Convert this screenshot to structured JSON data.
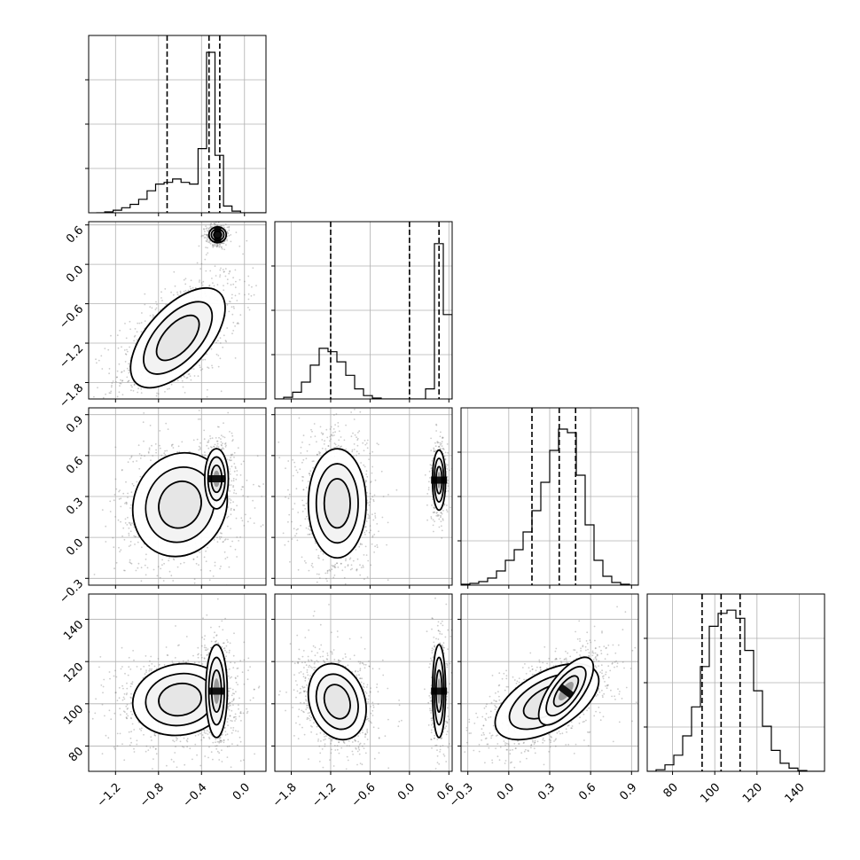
{
  "chart_data": {
    "type": "corner",
    "grid": true,
    "parameters": [
      {
        "index": 0,
        "range": [
          -1.45,
          0.2
        ],
        "x_ticks": [
          "−1.2",
          "−0.8",
          "−0.4",
          "0.0"
        ],
        "x_tick_values": [
          -1.2,
          -0.8,
          -0.4,
          0.0
        ],
        "quantiles": [
          -0.72,
          -0.33,
          -0.23
        ],
        "hist_edges": [
          -1.45,
          -0.1625
        ],
        "hist_counts": [
          0,
          0.005,
          0.015,
          0.03,
          0.05,
          0.08,
          0.13,
          0.17,
          0.18,
          0.2,
          0.18,
          0.17,
          0.38,
          0.95,
          0.34,
          0.04,
          0.01,
          0.0,
          0,
          0
        ],
        "hist_ymax": 1.05
      },
      {
        "index": 1,
        "range": [
          -2.05,
          0.65
        ],
        "x_ticks": [
          "−1.8",
          "−1.2",
          "−0.6",
          "0.0",
          "0.6"
        ],
        "x_tick_values": [
          -1.8,
          -1.2,
          -0.6,
          0.0,
          0.6
        ],
        "y_ticks": [
          "0.6",
          "0.0",
          "−0.6",
          "−1.2",
          "−1.8"
        ],
        "y_tick_values": [
          0.6,
          0.0,
          -0.6,
          -1.2,
          -1.8
        ],
        "quantiles": [
          -1.2,
          0.0,
          0.45
        ],
        "hist_counts": [
          0,
          0.01,
          0.04,
          0.1,
          0.2,
          0.3,
          0.28,
          0.22,
          0.14,
          0.06,
          0.02,
          0.005,
          0,
          0,
          0,
          0,
          0,
          0.06,
          0.92,
          0.5
        ],
        "hist_ymax": 1.05
      },
      {
        "index": 2,
        "range": [
          -0.35,
          0.95
        ],
        "x_ticks": [
          "−0.3",
          "0.0",
          "0.3",
          "0.6",
          "0.9"
        ],
        "x_tick_values": [
          -0.3,
          0.0,
          0.3,
          0.6,
          0.9
        ],
        "y_ticks": [
          "0.9",
          "0.6",
          "0.3",
          "0.0",
          "−0.3"
        ],
        "y_tick_values": [
          0.9,
          0.6,
          0.3,
          0.0,
          -0.3
        ],
        "quantiles": [
          0.17,
          0.37,
          0.49
        ],
        "hist_counts": [
          0.005,
          0.01,
          0.02,
          0.04,
          0.08,
          0.14,
          0.2,
          0.3,
          0.42,
          0.58,
          0.76,
          0.88,
          0.86,
          0.62,
          0.34,
          0.14,
          0.05,
          0.015,
          0.005,
          0
        ],
        "hist_ymax": 1.0
      },
      {
        "index": 3,
        "range": [
          68,
          152
        ],
        "x_ticks": [
          "80",
          "100",
          "120",
          "140"
        ],
        "x_tick_values": [
          80,
          100,
          120,
          140
        ],
        "y_ticks": [
          "140",
          "120",
          "100",
          "80"
        ],
        "y_tick_values": [
          140,
          120,
          100,
          80
        ],
        "quantiles": [
          94,
          103,
          112
        ],
        "hist_counts": [
          0,
          0.01,
          0.04,
          0.1,
          0.22,
          0.4,
          0.65,
          0.9,
          0.98,
          1.0,
          0.95,
          0.75,
          0.5,
          0.28,
          0.13,
          0.05,
          0.02,
          0.005,
          0,
          0
        ],
        "hist_ymax": 1.1
      }
    ],
    "pairs": [
      {
        "x": 0,
        "y": 1,
        "modes": [
          {
            "cx": -0.62,
            "cy": -1.12,
            "sx": 0.22,
            "sy": 0.38,
            "rho": 0.6,
            "w": 0.7
          },
          {
            "cx": -0.25,
            "cy": 0.45,
            "sx": 0.04,
            "sy": 0.06,
            "rho": 0.0,
            "w": 0.3
          }
        ]
      },
      {
        "x": 0,
        "y": 2,
        "modes": [
          {
            "cx": -0.6,
            "cy": 0.24,
            "sx": 0.22,
            "sy": 0.19,
            "rho": 0.1,
            "w": 0.7
          },
          {
            "cx": -0.26,
            "cy": 0.43,
            "sx": 0.055,
            "sy": 0.11,
            "rho": 0.0,
            "w": 0.3
          }
        ]
      },
      {
        "x": 1,
        "y": 2,
        "modes": [
          {
            "cx": -1.1,
            "cy": 0.25,
            "sx": 0.22,
            "sy": 0.2,
            "rho": 0.0,
            "w": 0.7
          },
          {
            "cx": 0.45,
            "cy": 0.42,
            "sx": 0.05,
            "sy": 0.11,
            "rho": 0.0,
            "w": 0.3
          }
        ]
      },
      {
        "x": 0,
        "y": 3,
        "modes": [
          {
            "cx": -0.6,
            "cy": 102,
            "sx": 0.22,
            "sy": 8.5,
            "rho": 0.1,
            "w": 0.7
          },
          {
            "cx": -0.26,
            "cy": 106,
            "sx": 0.05,
            "sy": 11,
            "rho": 0.0,
            "w": 0.3
          }
        ]
      },
      {
        "x": 1,
        "y": 3,
        "modes": [
          {
            "cx": -1.1,
            "cy": 101,
            "sx": 0.22,
            "sy": 9,
            "rho": -0.2,
            "w": 0.7
          },
          {
            "cx": 0.45,
            "cy": 106,
            "sx": 0.05,
            "sy": 11,
            "rho": 0.0,
            "w": 0.3
          }
        ]
      },
      {
        "x": 2,
        "y": 3,
        "modes": [
          {
            "cx": 0.28,
            "cy": 101,
            "sx": 0.19,
            "sy": 9,
            "rho": 0.55,
            "w": 0.7
          },
          {
            "cx": 0.42,
            "cy": 106,
            "sx": 0.1,
            "sy": 8,
            "rho": 0.7,
            "w": 0.3
          }
        ]
      }
    ]
  }
}
